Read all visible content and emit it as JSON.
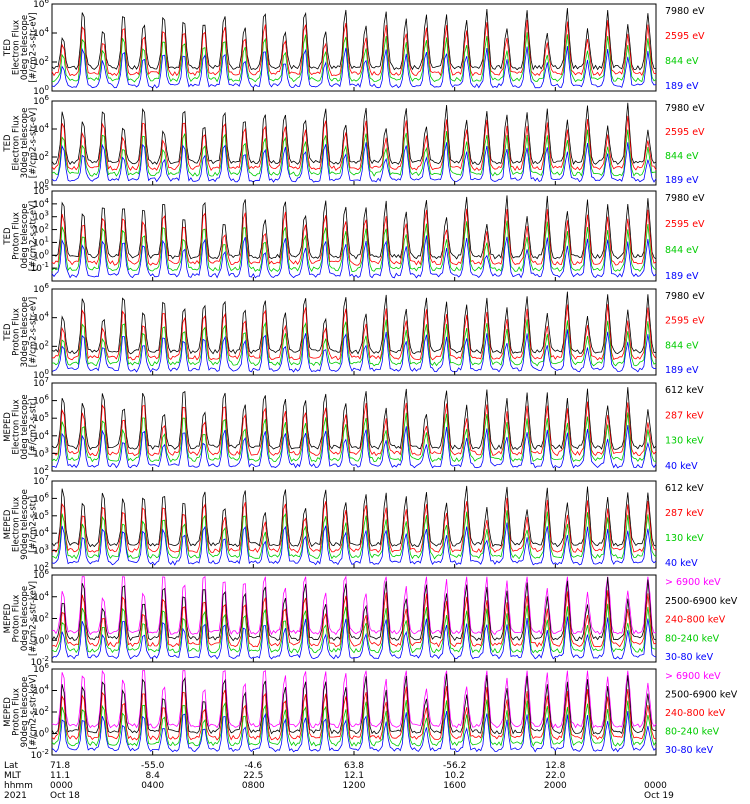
{
  "chart_data": [
    {
      "type": "line",
      "ylabel": [
        "TED",
        "Electron Flux",
        "0deg telescope",
        "[#/cm2-s-str-eV]"
      ],
      "ylim": [
        1,
        1000000
      ],
      "yscale": "log",
      "yticks": [
        {
          "v": 1,
          "l": "10^0"
        },
        {
          "v": 100,
          "l": "10^2"
        },
        {
          "v": 10000,
          "l": "10^4"
        },
        {
          "v": 1000000,
          "l": "10^6"
        }
      ],
      "series": [
        {
          "name": "7980 eV",
          "color": "#000000"
        },
        {
          "name": "2595 eV",
          "color": "#ff0000"
        },
        {
          "name": "844 eV",
          "color": "#00cc00"
        },
        {
          "name": "189 eV",
          "color": "#0000ff"
        }
      ]
    },
    {
      "type": "line",
      "ylabel": [
        "TED",
        "Electron Flux",
        "30deg telescope",
        "[#/cm2-s-str-eV]"
      ],
      "ylim": [
        1,
        1000000
      ],
      "yscale": "log",
      "yticks": [
        {
          "v": 1,
          "l": "10^0"
        },
        {
          "v": 100,
          "l": "10^2"
        },
        {
          "v": 10000,
          "l": "10^4"
        },
        {
          "v": 1000000,
          "l": "10^6"
        }
      ],
      "series": [
        {
          "name": "7980 eV",
          "color": "#000000"
        },
        {
          "name": "2595 eV",
          "color": "#ff0000"
        },
        {
          "name": "844 eV",
          "color": "#00cc00"
        },
        {
          "name": "189 eV",
          "color": "#0000ff"
        }
      ]
    },
    {
      "type": "line",
      "ylabel": [
        "TED",
        "Proton Flux",
        "0deg telescope",
        "[#/cm2-s-str-eV]"
      ],
      "ylim": [
        0.01,
        100000
      ],
      "yscale": "log",
      "yticks": [
        {
          "v": 0.1,
          "l": "10^-1"
        },
        {
          "v": 1,
          "l": "10^0"
        },
        {
          "v": 10,
          "l": "10^1"
        },
        {
          "v": 100,
          "l": "10^2"
        },
        {
          "v": 1000,
          "l": "10^3"
        },
        {
          "v": 10000,
          "l": "10^4"
        },
        {
          "v": 100000,
          "l": "10^5"
        }
      ],
      "series": [
        {
          "name": "7980 eV",
          "color": "#000000"
        },
        {
          "name": "2595 eV",
          "color": "#ff0000"
        },
        {
          "name": "844 eV",
          "color": "#00cc00"
        },
        {
          "name": "189 eV",
          "color": "#0000ff"
        }
      ]
    },
    {
      "type": "line",
      "ylabel": [
        "TED",
        "Proton Flux",
        "30deg telescope",
        "[#/cm2-s-str-eV]"
      ],
      "ylim": [
        1,
        1000000
      ],
      "yscale": "log",
      "yticks": [
        {
          "v": 1,
          "l": "10^0"
        },
        {
          "v": 100,
          "l": "10^2"
        },
        {
          "v": 10000,
          "l": "10^4"
        },
        {
          "v": 1000000,
          "l": "10^6"
        }
      ],
      "series": [
        {
          "name": "7980 eV",
          "color": "#000000"
        },
        {
          "name": "2595 eV",
          "color": "#ff0000"
        },
        {
          "name": "844 eV",
          "color": "#00cc00"
        },
        {
          "name": "189 eV",
          "color": "#0000ff"
        }
      ]
    },
    {
      "type": "line",
      "ylabel": [
        "MEPED",
        "Electron Flux",
        "0deg telescope",
        "[#/cm2-s-str]"
      ],
      "ylim": [
        100,
        10000000
      ],
      "yscale": "log",
      "yticks": [
        {
          "v": 100,
          "l": "10^2"
        },
        {
          "v": 1000,
          "l": "10^3"
        },
        {
          "v": 10000,
          "l": "10^4"
        },
        {
          "v": 100000,
          "l": "10^5"
        },
        {
          "v": 1000000,
          "l": "10^6"
        },
        {
          "v": 10000000,
          "l": "10^7"
        }
      ],
      "series": [
        {
          "name": "612 keV",
          "color": "#000000"
        },
        {
          "name": "287 keV",
          "color": "#ff0000"
        },
        {
          "name": "130 keV",
          "color": "#00cc00"
        },
        {
          "name": "40 keV",
          "color": "#0000ff"
        }
      ]
    },
    {
      "type": "line",
      "ylabel": [
        "MEPED",
        "Electron Flux",
        "90deg telescope",
        "[#/cm2-s-str]"
      ],
      "ylim": [
        100,
        10000000
      ],
      "yscale": "log",
      "yticks": [
        {
          "v": 100,
          "l": "10^2"
        },
        {
          "v": 1000,
          "l": "10^3"
        },
        {
          "v": 10000,
          "l": "10^4"
        },
        {
          "v": 100000,
          "l": "10^5"
        },
        {
          "v": 1000000,
          "l": "10^6"
        },
        {
          "v": 10000000,
          "l": "10^7"
        }
      ],
      "series": [
        {
          "name": "612 keV",
          "color": "#000000"
        },
        {
          "name": "287 keV",
          "color": "#ff0000"
        },
        {
          "name": "130 keV",
          "color": "#00cc00"
        },
        {
          "name": "40 keV",
          "color": "#0000ff"
        }
      ]
    },
    {
      "type": "line",
      "ylabel": [
        "MEPED",
        "Proton Flux",
        "0deg telescope",
        "[#/cm2-s-str-keV]"
      ],
      "ylim": [
        0.01,
        1000000
      ],
      "yscale": "log",
      "yticks": [
        {
          "v": 0.01,
          "l": "10^-2"
        },
        {
          "v": 1,
          "l": "10^0"
        },
        {
          "v": 100,
          "l": "10^2"
        },
        {
          "v": 10000,
          "l": "10^4"
        },
        {
          "v": 1000000,
          "l": "10^6"
        }
      ],
      "series": [
        {
          "name": "> 6900 keV",
          "color": "#ff00ff"
        },
        {
          "name": "2500-6900 keV",
          "color": "#000000"
        },
        {
          "name": "240-800 keV",
          "color": "#ff0000"
        },
        {
          "name": "80-240 keV",
          "color": "#00cc00"
        },
        {
          "name": "30-80 keV",
          "color": "#0000ff"
        }
      ]
    },
    {
      "type": "line",
      "ylabel": [
        "MEPED",
        "Proton Flux",
        "90deg telescope",
        "[#/cm2-s-str-keV]"
      ],
      "ylim": [
        0.01,
        1000000
      ],
      "yscale": "log",
      "yticks": [
        {
          "v": 0.01,
          "l": "10^-2"
        },
        {
          "v": 1,
          "l": "10^0"
        },
        {
          "v": 100,
          "l": "10^2"
        },
        {
          "v": 10000,
          "l": "10^4"
        },
        {
          "v": 1000000,
          "l": "10^6"
        }
      ],
      "series": [
        {
          "name": "> 6900 keV",
          "color": "#ff00ff"
        },
        {
          "name": "2500-6900 keV",
          "color": "#000000"
        },
        {
          "name": "240-800 keV",
          "color": "#ff0000"
        },
        {
          "name": "80-240 keV",
          "color": "#00cc00"
        },
        {
          "name": "30-80 keV",
          "color": "#0000ff"
        }
      ]
    }
  ],
  "xaxis": {
    "row_labels": [
      "Lat",
      "MLT",
      "hhmm",
      "2021"
    ],
    "ticks": [
      {
        "lat": "71.8",
        "mlt": "11.1",
        "hhmm": "0000",
        "date": "Oct 18"
      },
      {
        "lat": "-55.0",
        "mlt": "8.4",
        "hhmm": "0400",
        "date": ""
      },
      {
        "lat": "-4.6",
        "mlt": "22.5",
        "hhmm": "0800",
        "date": ""
      },
      {
        "lat": "63.8",
        "mlt": "12.1",
        "hhmm": "1200",
        "date": ""
      },
      {
        "lat": "-56.2",
        "mlt": "10.2",
        "hhmm": "1600",
        "date": ""
      },
      {
        "lat": "12.8",
        "mlt": "22.0",
        "hhmm": "2000",
        "date": ""
      },
      {
        "lat": "",
        "mlt": "",
        "hhmm": "0000",
        "date": "Oct 19"
      }
    ]
  }
}
